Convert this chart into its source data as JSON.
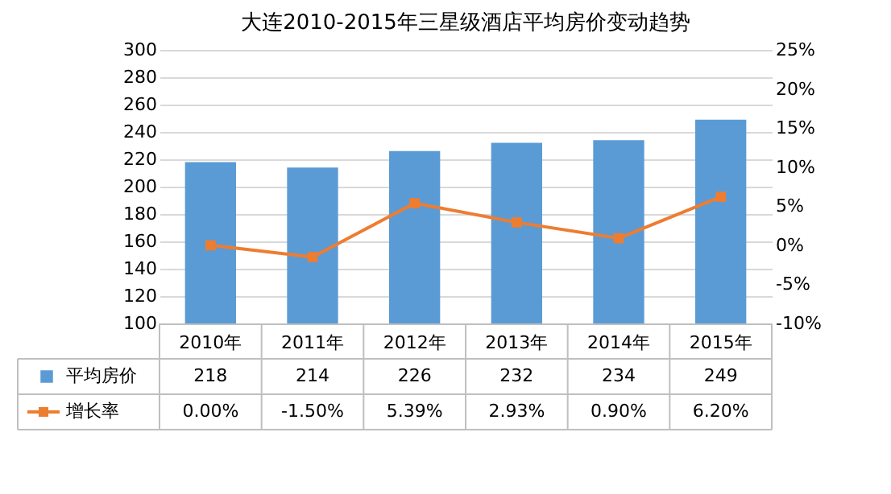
{
  "chart_data": {
    "type": "bar",
    "title": "大连2010-2015年三星级酒店平均房价变动趋势",
    "categories": [
      "2010年",
      "2011年",
      "2012年",
      "2013年",
      "2014年",
      "2015年"
    ],
    "series": [
      {
        "name": "平均房价",
        "color": "#5b9bd5",
        "values": [
          218,
          214,
          226,
          232,
          234,
          249
        ],
        "value_labels": [
          "218",
          "214",
          "226",
          "232",
          "234",
          "249"
        ]
      },
      {
        "name": "增长率",
        "type": "line",
        "axis": "y2",
        "color": "#ed7d31",
        "marker": "square",
        "values": [
          0.0,
          -1.5,
          5.39,
          2.93,
          0.9,
          6.2
        ],
        "value_labels": [
          "0.00%",
          "-1.50%",
          "5.39%",
          "2.93%",
          "0.90%",
          "6.20%"
        ]
      }
    ],
    "ylim": [
      100,
      300
    ],
    "yticks": [
      100,
      120,
      140,
      160,
      180,
      200,
      220,
      240,
      260,
      280,
      300
    ],
    "y2lim": [
      -10,
      25
    ],
    "y2ticks": [
      {
        "value": -10,
        "label": "-10%"
      },
      {
        "value": -5,
        "label": "-5%"
      },
      {
        "value": 0,
        "label": "0%"
      },
      {
        "value": 5,
        "label": "5%"
      },
      {
        "value": 10,
        "label": "10%"
      },
      {
        "value": 15,
        "label": "15%"
      },
      {
        "value": 20,
        "label": "20%"
      },
      {
        "value": 25,
        "label": "25%"
      }
    ],
    "grid": "y",
    "legend": "bottom"
  }
}
